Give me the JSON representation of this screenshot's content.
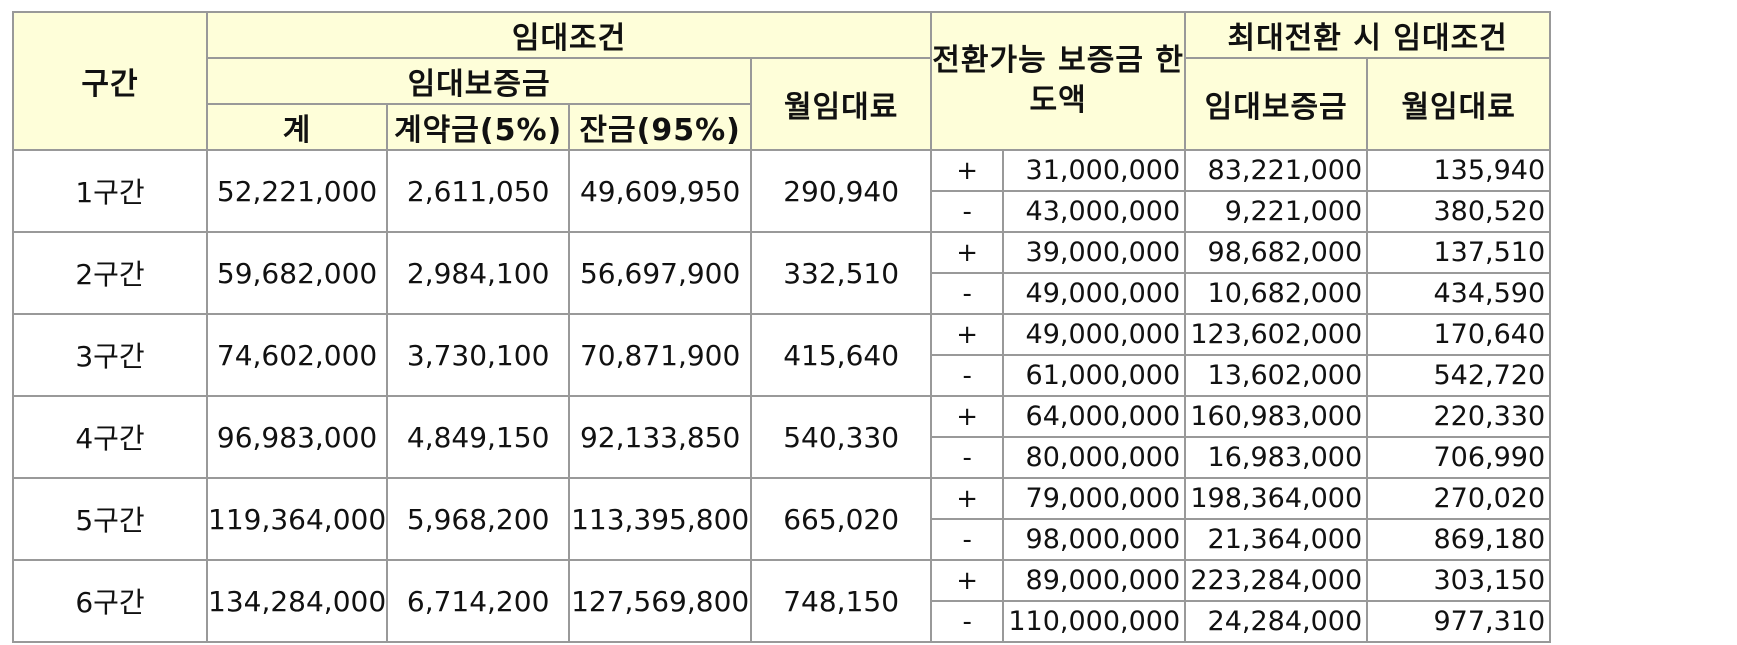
{
  "headers": {
    "section": "구간",
    "lease_terms": "임대조건",
    "deposit": "임대보증금",
    "total": "계",
    "contract_fee": "계약금(5%)",
    "balance": "잔금(95%)",
    "monthly_rent": "월임대료",
    "convertible_limit": "전환가능 보증금 한도액",
    "max_conversion_terms": "최대전환 시 임대조건",
    "deposit2": "임대보증금",
    "monthly_rent2": "월임대료"
  },
  "rows": [
    {
      "section": "1구간",
      "total": "52,221,000",
      "contract": "2,611,050",
      "balance": "49,609,950",
      "rent": "290,940",
      "conv": [
        {
          "sign": "+",
          "limit": "31,000,000",
          "deposit": "83,221,000",
          "rent": "135,940"
        },
        {
          "sign": "-",
          "limit": "43,000,000",
          "deposit": "9,221,000",
          "rent": "380,520"
        }
      ]
    },
    {
      "section": "2구간",
      "total": "59,682,000",
      "contract": "2,984,100",
      "balance": "56,697,900",
      "rent": "332,510",
      "conv": [
        {
          "sign": "+",
          "limit": "39,000,000",
          "deposit": "98,682,000",
          "rent": "137,510"
        },
        {
          "sign": "-",
          "limit": "49,000,000",
          "deposit": "10,682,000",
          "rent": "434,590"
        }
      ]
    },
    {
      "section": "3구간",
      "total": "74,602,000",
      "contract": "3,730,100",
      "balance": "70,871,900",
      "rent": "415,640",
      "conv": [
        {
          "sign": "+",
          "limit": "49,000,000",
          "deposit": "123,602,000",
          "rent": "170,640"
        },
        {
          "sign": "-",
          "limit": "61,000,000",
          "deposit": "13,602,000",
          "rent": "542,720"
        }
      ]
    },
    {
      "section": "4구간",
      "total": "96,983,000",
      "contract": "4,849,150",
      "balance": "92,133,850",
      "rent": "540,330",
      "conv": [
        {
          "sign": "+",
          "limit": "64,000,000",
          "deposit": "160,983,000",
          "rent": "220,330"
        },
        {
          "sign": "-",
          "limit": "80,000,000",
          "deposit": "16,983,000",
          "rent": "706,990"
        }
      ]
    },
    {
      "section": "5구간",
      "total": "119,364,000",
      "contract": "5,968,200",
      "balance": "113,395,800",
      "rent": "665,020",
      "conv": [
        {
          "sign": "+",
          "limit": "79,000,000",
          "deposit": "198,364,000",
          "rent": "270,020"
        },
        {
          "sign": "-",
          "limit": "98,000,000",
          "deposit": "21,364,000",
          "rent": "869,180"
        }
      ]
    },
    {
      "section": "6구간",
      "total": "134,284,000",
      "contract": "6,714,200",
      "balance": "127,569,800",
      "rent": "748,150",
      "conv": [
        {
          "sign": "+",
          "limit": "89,000,000",
          "deposit": "223,284,000",
          "rent": "303,150"
        },
        {
          "sign": "-",
          "limit": "110,000,000",
          "deposit": "24,284,000",
          "rent": "977,310"
        }
      ]
    }
  ]
}
